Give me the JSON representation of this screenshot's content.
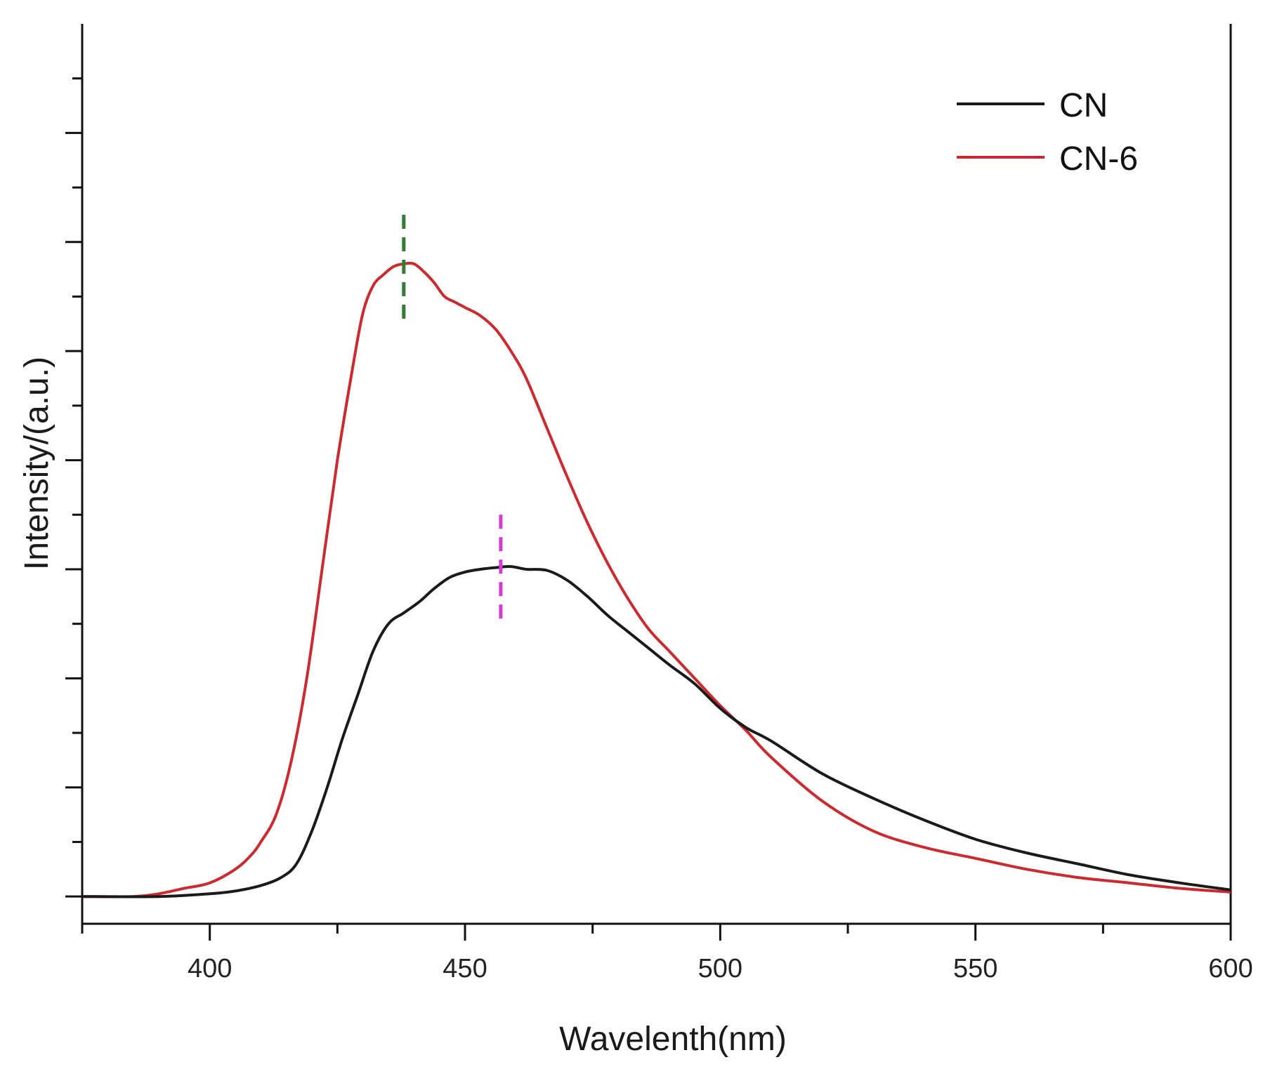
{
  "chart_data": {
    "type": "line",
    "title": "",
    "xlabel": "Wavelenth(nm)",
    "ylabel": "Intensity/(a.u.)",
    "xlim": [
      375,
      600
    ],
    "ylim": [
      -0.05,
      1.6
    ],
    "xticks": [
      400,
      450,
      500,
      550,
      600
    ],
    "xtick_labels": [
      "400",
      "450",
      "500",
      "550",
      "600"
    ],
    "y_tick_labels_shown": false,
    "grid": false,
    "legend_position": "top-right",
    "colors": {
      "CN": "#1a1a1a",
      "CN-6": "#cc2a2f",
      "peak_marker_cn6": "#2e7d32",
      "peak_marker_cn": "#d63ad6"
    },
    "series": [
      {
        "name": "CN",
        "x": [
          375,
          390,
          400,
          405,
          410,
          414,
          417,
          420,
          423,
          426,
          429,
          432,
          435,
          438,
          441,
          444,
          447,
          450,
          453,
          456,
          459,
          462,
          466,
          470,
          474,
          478,
          482,
          486,
          490,
          495,
          500,
          505,
          510,
          520,
          530,
          540,
          550,
          560,
          570,
          580,
          590,
          600
        ],
        "y": [
          0.0,
          0.0,
          0.005,
          0.01,
          0.02,
          0.035,
          0.06,
          0.12,
          0.2,
          0.29,
          0.37,
          0.45,
          0.5,
          0.52,
          0.54,
          0.565,
          0.585,
          0.595,
          0.6,
          0.603,
          0.605,
          0.6,
          0.598,
          0.58,
          0.55,
          0.515,
          0.485,
          0.455,
          0.425,
          0.39,
          0.345,
          0.31,
          0.285,
          0.225,
          0.18,
          0.14,
          0.105,
          0.08,
          0.06,
          0.04,
          0.025,
          0.012
        ]
      },
      {
        "name": "CN-6",
        "x": [
          375,
          385,
          390,
          395,
          400,
          405,
          408,
          410,
          413,
          416,
          419,
          422,
          425,
          428,
          430,
          432,
          434,
          436,
          438,
          440,
          442,
          444,
          446,
          448,
          450,
          453,
          456,
          459,
          462,
          466,
          470,
          474,
          478,
          482,
          486,
          490,
          495,
          500,
          505,
          510,
          520,
          530,
          540,
          550,
          560,
          570,
          580,
          590,
          600
        ],
        "y": [
          0.0,
          0.0,
          0.005,
          0.015,
          0.025,
          0.05,
          0.075,
          0.1,
          0.15,
          0.25,
          0.4,
          0.6,
          0.8,
          0.97,
          1.07,
          1.12,
          1.14,
          1.155,
          1.16,
          1.16,
          1.145,
          1.125,
          1.1,
          1.09,
          1.08,
          1.065,
          1.04,
          1.0,
          0.95,
          0.86,
          0.77,
          0.685,
          0.61,
          0.545,
          0.49,
          0.45,
          0.4,
          0.35,
          0.305,
          0.255,
          0.175,
          0.12,
          0.09,
          0.07,
          0.05,
          0.035,
          0.025,
          0.015,
          0.008
        ]
      }
    ],
    "annotations": [
      {
        "type": "vline-dashed",
        "x": 438,
        "y_range": [
          1.05,
          1.25
        ],
        "color_key": "peak_marker_cn6"
      },
      {
        "type": "vline-dashed",
        "x": 457,
        "y_range": [
          0.5,
          0.7
        ],
        "color_key": "peak_marker_cn"
      }
    ]
  }
}
